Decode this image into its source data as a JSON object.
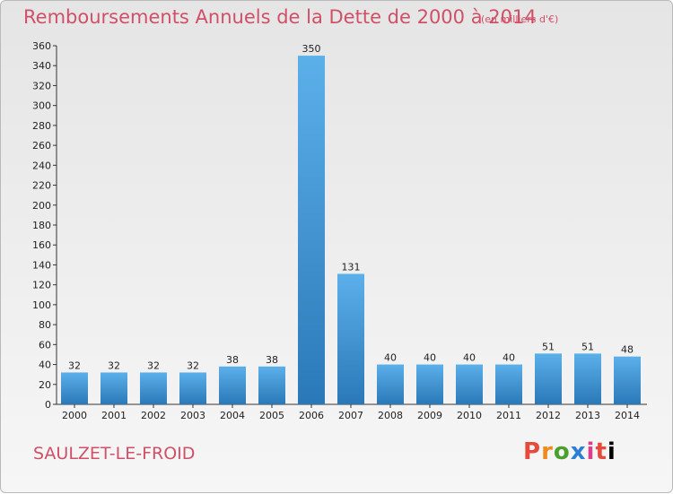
{
  "header": {
    "title": "Remboursements Annuels de la Dette de 2000 à 2014",
    "unit": "(en milliers d'€)"
  },
  "footer": {
    "commune": "SAULZET-LE-FROID",
    "logo": "Proxiti"
  },
  "colors": {
    "title": "#d05068",
    "bar_light": "#5aace6",
    "bar_dark": "#2e7fc0",
    "background": "#eeeeee"
  },
  "chart_data": {
    "type": "bar",
    "title": "Remboursements Annuels de la Dette de 2000 à 2014",
    "subtitle": "(en milliers d'€)",
    "categories": [
      "2000",
      "2001",
      "2002",
      "2003",
      "2004",
      "2005",
      "2006",
      "2007",
      "2008",
      "2009",
      "2010",
      "2011",
      "2012",
      "2013",
      "2014"
    ],
    "values": [
      32,
      32,
      32,
      32,
      38,
      38,
      350,
      131,
      40,
      40,
      40,
      40,
      51,
      51,
      48
    ],
    "ylim": [
      0,
      360
    ],
    "yticks": [
      0,
      20,
      40,
      60,
      80,
      100,
      120,
      140,
      160,
      180,
      200,
      220,
      240,
      260,
      280,
      300,
      320,
      340,
      360
    ],
    "grid": false,
    "data_labels": true
  }
}
